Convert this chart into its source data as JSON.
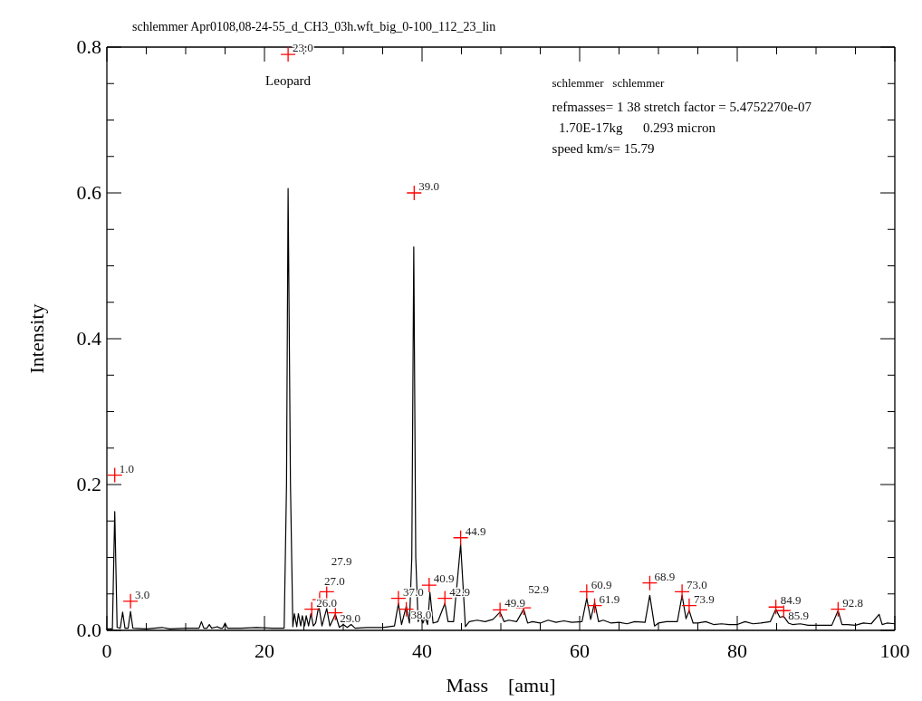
{
  "chart_data": {
    "type": "line",
    "title": "schlemmer   Apr0108,08-24-55_d_CH3_03h.wft_big_0-100_112_23_lin",
    "xlabel": "Mass    [amu]",
    "ylabel": "Intensity",
    "annotations": [
      "Leopard",
      "schlemmer   schlemmer",
      "refmasses= 1 38 stretch factor = 5.4752270e-07",
      "  1.70E-17kg      0.293 micron",
      "speed km/s= 15.79",
      {
        "text": "1.0",
        "x": 1.0,
        "y": 0.213
      },
      {
        "text": "3.0",
        "x": 3.0,
        "y": 0.04
      },
      {
        "text": "23.0",
        "x": 23.0,
        "y": 0.79
      },
      {
        "text": "26.0",
        "x": 26.0,
        "y": 0.029
      },
      {
        "text": "27.0",
        "x": 27.0,
        "y": 0.042
      },
      {
        "text": "27.9",
        "x": 27.9,
        "y": 0.053
      },
      {
        "text": "29.0",
        "x": 29.0,
        "y": 0.024
      },
      {
        "text": "37.0",
        "x": 37.0,
        "y": 0.044
      },
      {
        "text": "38.0",
        "x": 38.0,
        "y": 0.029
      },
      {
        "text": "39.0",
        "x": 39.0,
        "y": 0.6
      },
      {
        "text": "40.9",
        "x": 40.9,
        "y": 0.062
      },
      {
        "text": "42.9",
        "x": 42.9,
        "y": 0.044
      },
      {
        "text": "44.9",
        "x": 44.9,
        "y": 0.127
      },
      {
        "text": "49.9",
        "x": 49.9,
        "y": 0.028
      },
      {
        "text": "52.9",
        "x": 52.9,
        "y": 0.031
      },
      {
        "text": "60.9",
        "x": 60.9,
        "y": 0.053
      },
      {
        "text": "61.9",
        "x": 61.9,
        "y": 0.034
      },
      {
        "text": "68.9",
        "x": 68.9,
        "y": 0.065
      },
      {
        "text": "73.0",
        "x": 73.0,
        "y": 0.053
      },
      {
        "text": "73.9",
        "x": 73.9,
        "y": 0.034
      },
      {
        "text": "84.9",
        "x": 84.9,
        "y": 0.032
      },
      {
        "text": "85.9",
        "x": 85.9,
        "y": 0.027
      },
      {
        "text": "92.8",
        "x": 92.8,
        "y": 0.029
      }
    ],
    "xlim": [
      0,
      100
    ],
    "ylim": [
      0,
      0.8
    ],
    "xticks": [
      {
        "value": 0,
        "label": "0"
      },
      {
        "value": 5,
        "label": null
      },
      {
        "value": 10,
        "label": null
      },
      {
        "value": 15,
        "label": null
      },
      {
        "value": 20,
        "label": "20"
      },
      {
        "value": 25,
        "label": null
      },
      {
        "value": 30,
        "label": null
      },
      {
        "value": 35,
        "label": null
      },
      {
        "value": 40,
        "label": "40"
      },
      {
        "value": 45,
        "label": null
      },
      {
        "value": 50,
        "label": null
      },
      {
        "value": 55,
        "label": null
      },
      {
        "value": 60,
        "label": "60"
      },
      {
        "value": 65,
        "label": null
      },
      {
        "value": 70,
        "label": null
      },
      {
        "value": 75,
        "label": null
      },
      {
        "value": 80,
        "label": "80"
      },
      {
        "value": 85,
        "label": null
      },
      {
        "value": 90,
        "label": null
      },
      {
        "value": 95,
        "label": null
      },
      {
        "value": 100,
        "label": "100"
      }
    ],
    "yticks": [
      {
        "value": 0,
        "label": "0.0"
      },
      {
        "value": 0.05,
        "label": null
      },
      {
        "value": 0.1,
        "label": null
      },
      {
        "value": 0.15,
        "label": null
      },
      {
        "value": 0.2,
        "label": "0.2"
      },
      {
        "value": 0.25,
        "label": null
      },
      {
        "value": 0.3,
        "label": null
      },
      {
        "value": 0.35,
        "label": null
      },
      {
        "value": 0.4,
        "label": "0.4"
      },
      {
        "value": 0.45,
        "label": null
      },
      {
        "value": 0.5,
        "label": null
      },
      {
        "value": 0.55,
        "label": null
      },
      {
        "value": 0.6,
        "label": "0.6"
      },
      {
        "value": 0.65,
        "label": null
      },
      {
        "value": 0.7,
        "label": null
      },
      {
        "value": 0.75,
        "label": null
      },
      {
        "value": 0.8,
        "label": "0.8"
      }
    ],
    "grid": false,
    "series": [
      {
        "color": "#000000",
        "marker": "none",
        "line_style": "solid",
        "x": [
          0,
          0.7,
          1.0,
          1.3,
          1.7,
          2.0,
          2.3,
          2.7,
          3.0,
          3.3,
          5,
          7,
          8,
          10,
          11.7,
          12,
          12.3,
          12.7,
          13,
          13.3,
          14,
          14.4,
          14.7,
          15,
          15.3,
          17,
          19,
          21,
          22.5,
          22.8,
          23.0,
          23.3,
          23.6,
          23.8,
          24.1,
          24.3,
          24.6,
          24.8,
          25.1,
          25.3,
          25.6,
          25.9,
          26.2,
          26.5,
          26.9,
          27.3,
          27.9,
          28.3,
          29.0,
          29.5,
          30,
          30.5,
          31,
          31.5,
          33,
          35,
          36.5,
          37.0,
          37.4,
          38.0,
          38.4,
          38.7,
          38.95,
          39.2,
          39.5,
          39.8,
          40.1,
          40.4,
          40.7,
          41.0,
          41.4,
          42.0,
          42.9,
          43.3,
          44.0,
          44.9,
          45.5,
          46,
          47,
          48,
          49,
          49.9,
          50.4,
          51,
          52,
          52.9,
          53.4,
          54,
          55,
          56,
          57,
          58,
          59,
          60.3,
          60.9,
          61.4,
          61.9,
          62.4,
          63,
          64,
          65,
          66,
          67,
          68.3,
          68.9,
          69.5,
          70,
          71,
          72.4,
          73.0,
          73.5,
          73.9,
          74.4,
          75,
          76,
          77,
          78,
          79,
          80,
          81,
          82,
          83,
          84.2,
          84.9,
          85.4,
          85.9,
          86.5,
          87,
          88,
          89,
          90,
          92,
          92.8,
          93.3,
          94,
          95,
          96,
          97,
          98,
          98.4,
          99,
          100
        ],
        "values": [
          0.002,
          0.002,
          0.163,
          0.004,
          0.003,
          0.025,
          0.003,
          0.003,
          0.026,
          0.003,
          0.002,
          0.004,
          0.002,
          0.003,
          0.003,
          0.012,
          0.003,
          0.003,
          0.008,
          0.003,
          0.005,
          0.003,
          0.003,
          0.01,
          0.003,
          0.003,
          0.004,
          0.003,
          0.003,
          0.2,
          0.606,
          0.2,
          0.005,
          0.023,
          0.005,
          0.023,
          0.006,
          0.02,
          0.006,
          0.02,
          0.006,
          0.023,
          0.006,
          0.01,
          0.034,
          0.006,
          0.03,
          0.006,
          0.022,
          0.004,
          0.008,
          0.004,
          0.008,
          0.003,
          0.004,
          0.004,
          0.006,
          0.037,
          0.008,
          0.033,
          0.01,
          0.1,
          0.526,
          0.1,
          0.012,
          0.02,
          0.01,
          0.018,
          0.008,
          0.052,
          0.01,
          0.012,
          0.037,
          0.012,
          0.012,
          0.118,
          0.005,
          0.012,
          0.014,
          0.012,
          0.015,
          0.025,
          0.012,
          0.014,
          0.012,
          0.029,
          0.01,
          0.012,
          0.01,
          0.014,
          0.011,
          0.013,
          0.011,
          0.012,
          0.044,
          0.015,
          0.038,
          0.012,
          0.014,
          0.01,
          0.011,
          0.009,
          0.012,
          0.011,
          0.048,
          0.006,
          0.01,
          0.012,
          0.012,
          0.048,
          0.016,
          0.027,
          0.01,
          0.01,
          0.012,
          0.008,
          0.009,
          0.008,
          0.008,
          0.012,
          0.009,
          0.01,
          0.012,
          0.029,
          0.018,
          0.019,
          0.01,
          0.008,
          0.009,
          0.007,
          0.007,
          0.007,
          0.027,
          0.008,
          0.008,
          0.007,
          0.01,
          0.009,
          0.022,
          0.008,
          0.01,
          0.009
        ]
      },
      {
        "type": "scatter",
        "color": "#ff0000",
        "marker": "cross",
        "x": [
          1.0,
          3.0,
          23.0,
          26.0,
          27.0,
          27.9,
          29.0,
          37.0,
          38.0,
          39.0,
          40.9,
          42.9,
          44.9,
          49.9,
          52.9,
          60.9,
          61.9,
          68.9,
          73.0,
          73.9,
          84.9,
          85.9,
          92.8
        ],
        "values": [
          0.213,
          0.04,
          0.79,
          0.029,
          0.042,
          0.053,
          0.024,
          0.044,
          0.029,
          0.6,
          0.062,
          0.044,
          0.127,
          0.028,
          0.031,
          0.053,
          0.034,
          0.065,
          0.053,
          0.034,
          0.032,
          0.027,
          0.029
        ]
      }
    ]
  }
}
